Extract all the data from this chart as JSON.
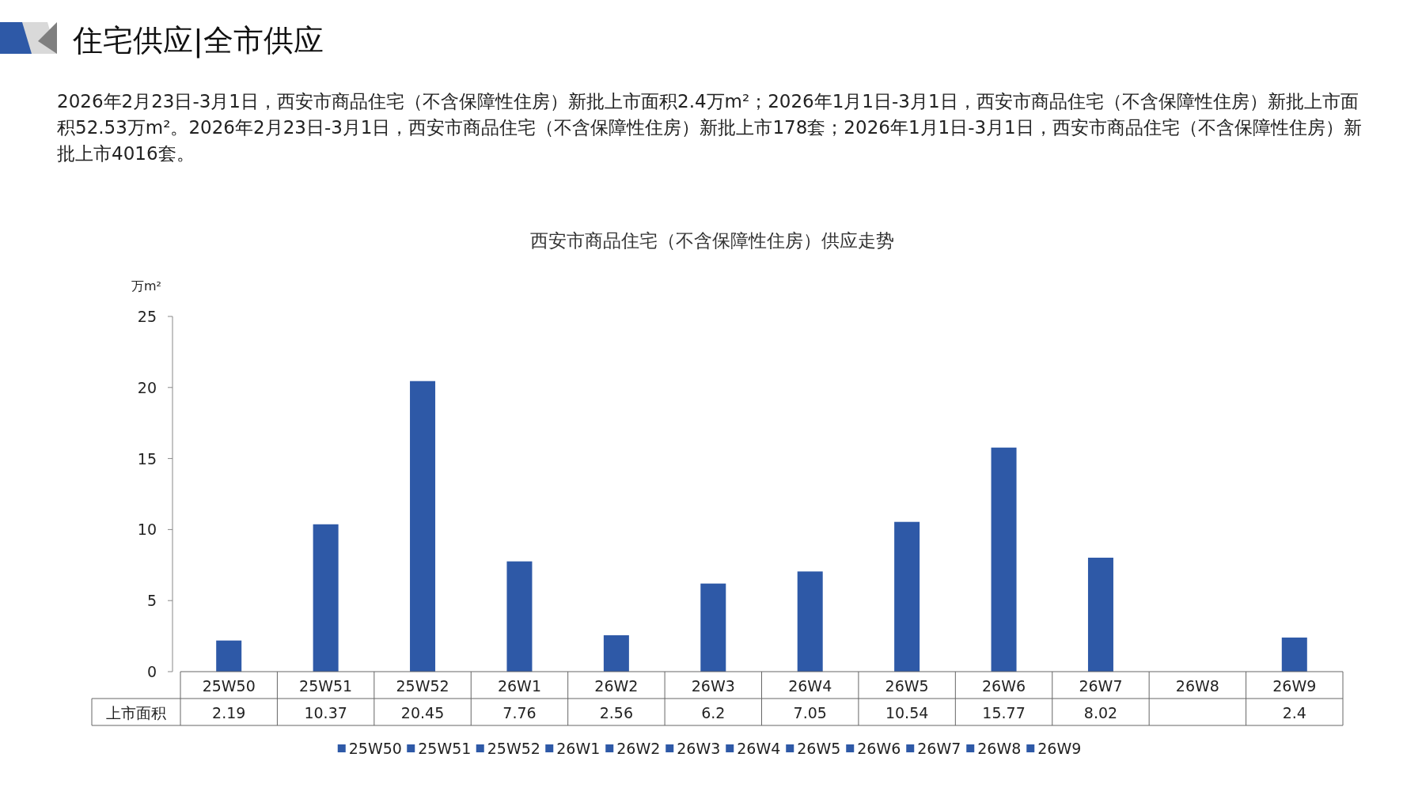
{
  "chart_data": {
    "type": "bar",
    "subtitle": "住宅供应|全市供应",
    "annotations": [
      "2026年2月23日-3月1日，西安市商品住宅（不含保障性住房）新批上市面积2.4万m²；2026年1月1日-3月1日，西安市商品住宅（不含保障性住房）新批上市面积52.53万m²。2026年2月23日-3月1日，西安市商品住宅（不含保障性住房）新批上市178套；2026年1月1日-3月1日，西安市商品住宅（不含保障性住房）新批上市4016套。"
    ],
    "title": "西安市商品住宅（不含保障性住房）供应走势",
    "ylabel": "万m²",
    "categories": [
      "25W50",
      "25W51",
      "25W52",
      "26W1",
      "26W2",
      "26W3",
      "26W4",
      "26W5",
      "26W6",
      "26W7",
      "26W8",
      "26W9"
    ],
    "series": [
      {
        "name": "上市面积",
        "color": "#2e59a7",
        "values": [
          2.19,
          10.37,
          20.45,
          7.76,
          2.56,
          6.2,
          7.05,
          10.54,
          15.77,
          8.02,
          null,
          2.4
        ]
      }
    ],
    "ylim": [
      0,
      25
    ],
    "yticks": [
      0,
      5,
      10,
      15,
      20,
      25
    ],
    "data_labels": true,
    "legend": "bottom"
  }
}
